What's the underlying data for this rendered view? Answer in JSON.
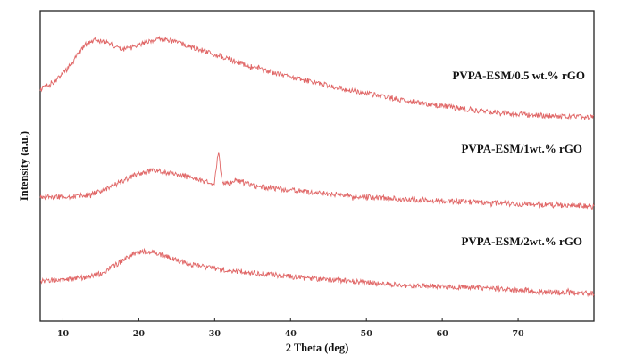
{
  "chart_data": {
    "type": "line",
    "title": "",
    "xlabel": "2 Theta (deg)",
    "ylabel": "Intensity (a.u.)",
    "xlim": [
      7,
      80
    ],
    "xticks": [
      10,
      20,
      30,
      40,
      50,
      60,
      70
    ],
    "y_tick_labels": "none",
    "grid": false,
    "legend": "none (series labeled directly above each curve)",
    "line_color": "#e06666",
    "series": [
      {
        "name": "PVPA-ESM/0.5 wt.% rGO",
        "x": [
          7,
          9,
          11,
          12,
          13,
          14,
          15,
          16,
          17,
          18,
          19,
          20,
          21,
          22,
          23,
          24,
          25,
          27,
          30,
          33,
          35,
          40,
          45,
          50,
          55,
          60,
          65,
          70,
          75,
          80
        ],
        "y": [
          0.55,
          0.7,
          1.0,
          1.2,
          1.38,
          1.46,
          1.45,
          1.4,
          1.33,
          1.3,
          1.31,
          1.37,
          1.43,
          1.47,
          1.48,
          1.46,
          1.42,
          1.33,
          1.2,
          1.06,
          0.96,
          0.78,
          0.62,
          0.48,
          0.35,
          0.25,
          0.16,
          0.1,
          0.06,
          0.04
        ]
      },
      {
        "name": "PVPA-ESM/1wt.% rGO",
        "x": [
          7,
          10,
          13,
          15,
          17,
          19,
          21,
          22,
          23,
          25,
          27,
          29,
          30,
          30.5,
          31,
          32,
          33,
          35,
          40,
          45,
          50,
          55,
          60,
          65,
          70,
          75,
          80
        ],
        "y": [
          0.3,
          0.3,
          0.34,
          0.44,
          0.62,
          0.82,
          0.95,
          0.97,
          0.95,
          0.88,
          0.78,
          0.68,
          0.66,
          1.5,
          0.62,
          0.66,
          0.74,
          0.58,
          0.47,
          0.38,
          0.3,
          0.24,
          0.2,
          0.16,
          0.12,
          0.09,
          0.06
        ]
      },
      {
        "name": "PVPA-ESM/2wt.% rGO",
        "x": [
          7,
          10,
          13,
          15,
          17,
          19,
          20,
          21,
          22,
          23,
          25,
          27,
          30,
          35,
          40,
          45,
          50,
          55,
          60,
          65,
          70,
          75,
          80
        ],
        "y": [
          0.28,
          0.3,
          0.34,
          0.42,
          0.6,
          0.8,
          0.86,
          0.88,
          0.86,
          0.8,
          0.7,
          0.6,
          0.52,
          0.44,
          0.36,
          0.3,
          0.24,
          0.18,
          0.16,
          0.14,
          0.08,
          0.04,
          0.02
        ]
      }
    ]
  }
}
